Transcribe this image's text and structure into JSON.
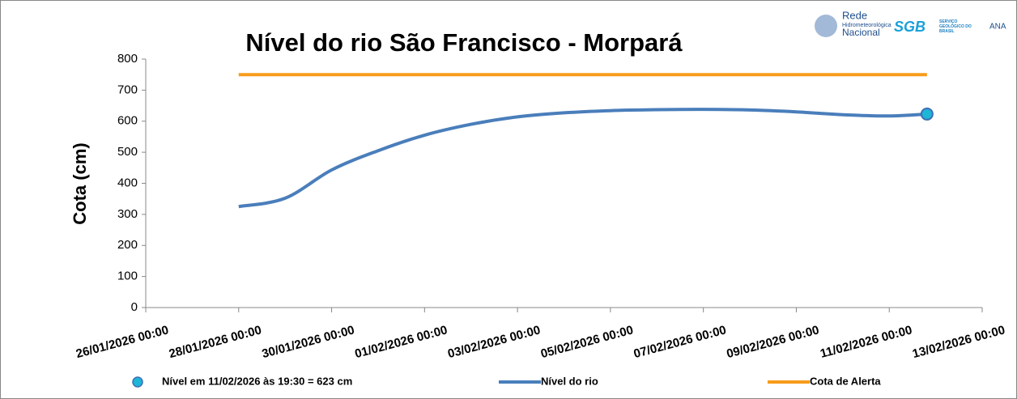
{
  "chart_data": {
    "type": "line",
    "title": "Nível do rio São Francisco - Morpará",
    "y_label": "Cota (cm)",
    "ylim": [
      0,
      800
    ],
    "yticks": [
      0,
      100,
      200,
      300,
      400,
      500,
      600,
      700,
      800
    ],
    "xlim": [
      "26/01/2026 00:00",
      "13/02/2026 00:00"
    ],
    "xticks": [
      "26/01/2026 00:00",
      "28/01/2026 00:00",
      "30/01/2026 00:00",
      "01/02/2026 00:00",
      "03/02/2026 00:00",
      "05/02/2026 00:00",
      "07/02/2026 00:00",
      "09/02/2026 00:00",
      "11/02/2026 00:00",
      "13/02/2026 00:00"
    ],
    "series": [
      {
        "name": "Nível em 11/02/2026 às 19:30 = 623 cm",
        "kind": "marker",
        "color": "#1fb5d6",
        "edge": "#3d6fb5",
        "x": [
          "11/02/2026 19:30"
        ],
        "values": [
          623
        ]
      },
      {
        "name": "Nível do rio",
        "kind": "line",
        "color": "#4a7ebb",
        "x": [
          "28/01/2026 00:00",
          "29/01/2026 00:00",
          "30/01/2026 00:00",
          "31/01/2026 00:00",
          "01/02/2026 00:00",
          "02/02/2026 00:00",
          "03/02/2026 00:00",
          "04/02/2026 00:00",
          "05/02/2026 00:00",
          "06/02/2026 00:00",
          "07/02/2026 00:00",
          "08/02/2026 00:00",
          "09/02/2026 00:00",
          "10/02/2026 00:00",
          "11/02/2026 00:00",
          "11/02/2026 19:30"
        ],
        "values": [
          325,
          352,
          443,
          505,
          555,
          590,
          614,
          627,
          634,
          637,
          638,
          636,
          630,
          621,
          617,
          623
        ]
      },
      {
        "name": "Cota de Alerta",
        "kind": "line",
        "color": "#f79c1b",
        "x": [
          "28/01/2026 00:00",
          "11/02/2026 19:30"
        ],
        "values": [
          750,
          750
        ]
      }
    ],
    "logos": [
      "Rede",
      "Hidrometeorológica",
      "Nacional",
      "SGB",
      "SERVIÇO GEOLÓGICO DO BRASIL",
      "ANA"
    ]
  }
}
